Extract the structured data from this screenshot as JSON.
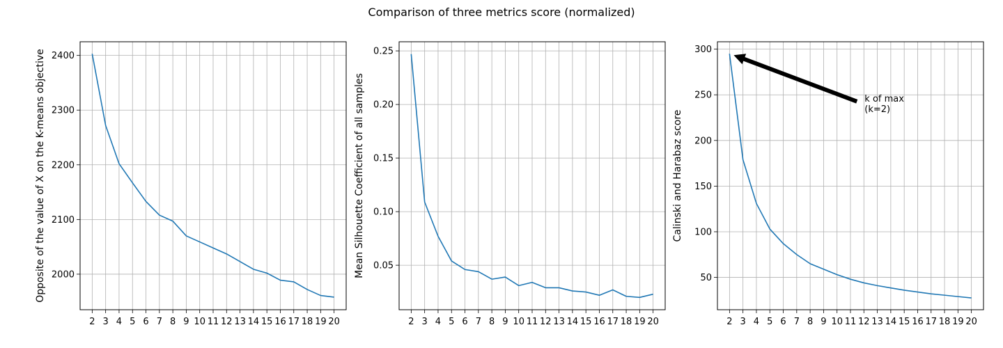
{
  "figure_title": "Comparison of three metrics score (normalized)",
  "colors": {
    "line": "#1f77b4",
    "grid": "#b0b0b0",
    "axis": "#000000",
    "arrow": "#000000"
  },
  "chart_data": [
    {
      "type": "line",
      "title": "",
      "xlabel": "",
      "ylabel": "Opposite of the value of X on the K-means objective",
      "x": [
        2,
        3,
        4,
        5,
        6,
        7,
        8,
        9,
        10,
        11,
        12,
        13,
        14,
        15,
        16,
        17,
        18,
        19,
        20
      ],
      "series": [
        {
          "values": [
            2403,
            2272,
            2202,
            2167,
            2133,
            2108,
            2097,
            2070,
            2059,
            2048,
            2037,
            2023,
            2009,
            2002,
            1989,
            1986,
            1972,
            1961,
            1958
          ]
        }
      ],
      "xlim": [
        1.1,
        20.9
      ],
      "ylim": [
        1935,
        2425
      ],
      "yticks": [
        2000,
        2100,
        2200,
        2300,
        2400
      ],
      "ytick_labels": [
        "2000",
        "2100",
        "2200",
        "2300",
        "2400"
      ],
      "grid": true
    },
    {
      "type": "line",
      "title": "",
      "xlabel": "",
      "ylabel": "Mean Silhouette Coefficient of all samples",
      "x": [
        2,
        3,
        4,
        5,
        6,
        7,
        8,
        9,
        10,
        11,
        12,
        13,
        14,
        15,
        16,
        17,
        18,
        19,
        20
      ],
      "series": [
        {
          "values": [
            0.247,
            0.109,
            0.077,
            0.054,
            0.046,
            0.044,
            0.037,
            0.039,
            0.031,
            0.034,
            0.029,
            0.029,
            0.026,
            0.025,
            0.022,
            0.027,
            0.021,
            0.02,
            0.023
          ]
        }
      ],
      "xlim": [
        1.1,
        20.9
      ],
      "ylim": [
        0.0085,
        0.2585
      ],
      "yticks": [
        0.05,
        0.1,
        0.15,
        0.2,
        0.25
      ],
      "ytick_labels": [
        "0.05",
        "0.10",
        "0.15",
        "0.20",
        "0.25"
      ],
      "grid": true
    },
    {
      "type": "line",
      "title": "",
      "xlabel": "",
      "ylabel": "Calinski and Harabaz score",
      "x": [
        2,
        3,
        4,
        5,
        6,
        7,
        8,
        9,
        10,
        11,
        12,
        13,
        14,
        15,
        16,
        17,
        18,
        19,
        20
      ],
      "series": [
        {
          "values": [
            295,
            179,
            131,
            103,
            87,
            75,
            65,
            59,
            53,
            48,
            44,
            41,
            38.5,
            36,
            34,
            32,
            30.5,
            29,
            27.5
          ]
        }
      ],
      "xlim": [
        1.1,
        20.9
      ],
      "ylim": [
        14.6,
        308.1
      ],
      "yticks": [
        50,
        100,
        150,
        200,
        250,
        300
      ],
      "ytick_labels": [
        "50",
        "100",
        "150",
        "200",
        "250",
        "300"
      ],
      "grid": true,
      "annotation": {
        "text_lines": [
          "k of max",
          "(k=2)"
        ],
        "point": [
          2,
          295
        ],
        "text_at": [
          12,
          245
        ]
      }
    }
  ]
}
